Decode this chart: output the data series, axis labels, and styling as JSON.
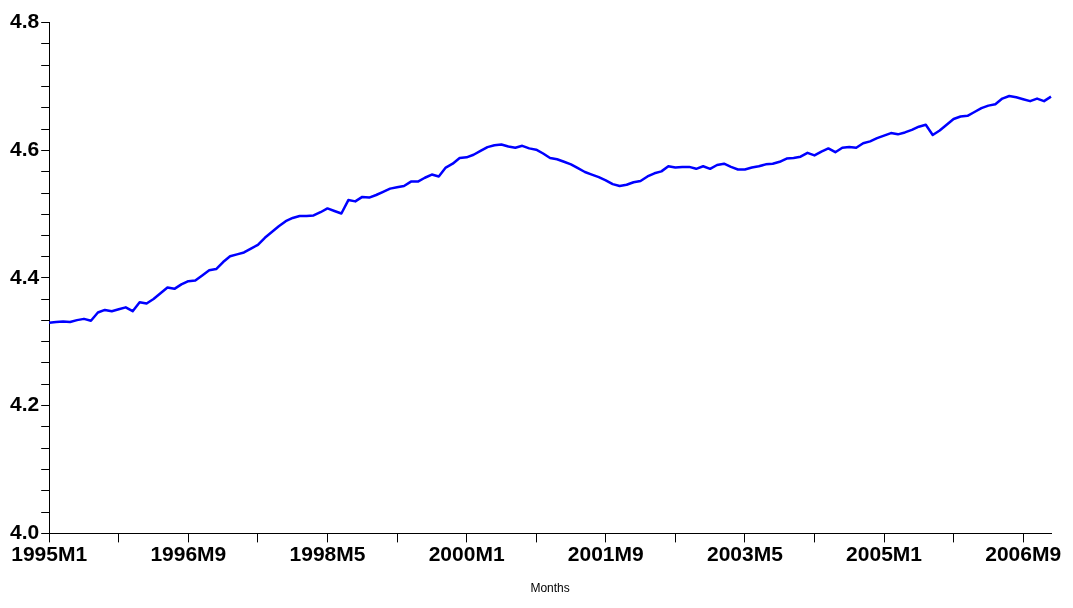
{
  "chart_data": {
    "type": "line",
    "xlabel": "Months",
    "categories": [
      "1995M1",
      null,
      null,
      null,
      null,
      null,
      null,
      null,
      null,
      null,
      null,
      null,
      null,
      null,
      null,
      null,
      null,
      null,
      null,
      null,
      "1996M9",
      null,
      null,
      null,
      null,
      null,
      null,
      null,
      null,
      null,
      null,
      null,
      null,
      null,
      null,
      null,
      null,
      null,
      null,
      null,
      "1998M5",
      null,
      null,
      null,
      null,
      null,
      null,
      null,
      null,
      null,
      null,
      null,
      null,
      null,
      null,
      null,
      null,
      null,
      null,
      null,
      "2000M1",
      null,
      null,
      null,
      null,
      null,
      null,
      null,
      null,
      null,
      null,
      null,
      null,
      null,
      null,
      null,
      null,
      null,
      null,
      null,
      "2001M9",
      null,
      null,
      null,
      null,
      null,
      null,
      null,
      null,
      null,
      null,
      null,
      null,
      null,
      null,
      null,
      null,
      null,
      null,
      null,
      "2003M5",
      null,
      null,
      null,
      null,
      null,
      null,
      null,
      null,
      null,
      null,
      null,
      null,
      null,
      null,
      null,
      null,
      null,
      null,
      null,
      "2005M1",
      null,
      null,
      null,
      null,
      null,
      null,
      null,
      null,
      null,
      null,
      null,
      null,
      null,
      null,
      null,
      null,
      null,
      null,
      null,
      "2006M9",
      null,
      null,
      null,
      null
    ],
    "series": [
      {
        "color": "#0000ff",
        "values": [
          4.33,
          4.331,
          4.332,
          4.331,
          4.334,
          4.336,
          4.333,
          4.346,
          4.35,
          4.348,
          4.351,
          4.354,
          4.348,
          4.362,
          4.36,
          4.367,
          4.376,
          4.385,
          4.383,
          4.39,
          4.395,
          4.396,
          4.404,
          4.412,
          4.414,
          4.425,
          4.434,
          4.437,
          4.44,
          4.446,
          4.452,
          4.463,
          4.472,
          4.481,
          4.489,
          4.494,
          4.497,
          4.497,
          4.498,
          4.503,
          4.509,
          4.505,
          4.501,
          4.522,
          4.52,
          4.527,
          4.526,
          4.53,
          4.535,
          4.54,
          4.542,
          4.544,
          4.551,
          4.551,
          4.557,
          4.562,
          4.559,
          4.573,
          4.579,
          4.588,
          4.589,
          4.593,
          4.599,
          4.605,
          4.608,
          4.609,
          4.606,
          4.604,
          4.607,
          4.603,
          4.601,
          4.595,
          4.588,
          4.586,
          4.582,
          4.578,
          4.572,
          4.566,
          4.562,
          4.558,
          4.553,
          4.547,
          4.544,
          4.546,
          4.55,
          4.552,
          4.559,
          4.564,
          4.567,
          4.575,
          4.573,
          4.574,
          4.574,
          4.571,
          4.575,
          4.571,
          4.577,
          4.579,
          4.574,
          4.57,
          4.57,
          4.573,
          4.575,
          4.578,
          4.579,
          4.582,
          4.587,
          4.588,
          4.59,
          4.596,
          4.592,
          4.598,
          4.603,
          4.597,
          4.604,
          4.605,
          4.604,
          4.611,
          4.614,
          4.619,
          4.623,
          4.627,
          4.625,
          4.628,
          4.632,
          4.637,
          4.64,
          4.624,
          4.631,
          4.64,
          4.649,
          4.653,
          4.654,
          4.66,
          4.666,
          4.67,
          4.672,
          4.681,
          4.685,
          4.683,
          4.68,
          4.677,
          4.681,
          4.677,
          4.684
        ]
      }
    ],
    "ylim": [
      4.0,
      4.8
    ],
    "yticks": [
      {
        "value": 4.0,
        "label": "4.0"
      },
      {
        "value": 4.033,
        "label": null
      },
      {
        "value": 4.067,
        "label": null
      },
      {
        "value": 4.1,
        "label": null
      },
      {
        "value": 4.133,
        "label": null
      },
      {
        "value": 4.167,
        "label": null
      },
      {
        "value": 4.2,
        "label": "4.2"
      },
      {
        "value": 4.233,
        "label": null
      },
      {
        "value": 4.267,
        "label": null
      },
      {
        "value": 4.3,
        "label": null
      },
      {
        "value": 4.333,
        "label": null
      },
      {
        "value": 4.367,
        "label": null
      },
      {
        "value": 4.4,
        "label": "4.4"
      },
      {
        "value": 4.433,
        "label": null
      },
      {
        "value": 4.467,
        "label": null
      },
      {
        "value": 4.5,
        "label": null
      },
      {
        "value": 4.533,
        "label": null
      },
      {
        "value": 4.567,
        "label": null
      },
      {
        "value": 4.6,
        "label": "4.6"
      },
      {
        "value": 4.633,
        "label": null
      },
      {
        "value": 4.667,
        "label": null
      },
      {
        "value": 4.7,
        "label": null
      },
      {
        "value": 4.733,
        "label": null
      },
      {
        "value": 4.767,
        "label": null
      },
      {
        "value": 4.8,
        "label": "4.8"
      }
    ],
    "marker": "none",
    "line_style": "solid"
  }
}
